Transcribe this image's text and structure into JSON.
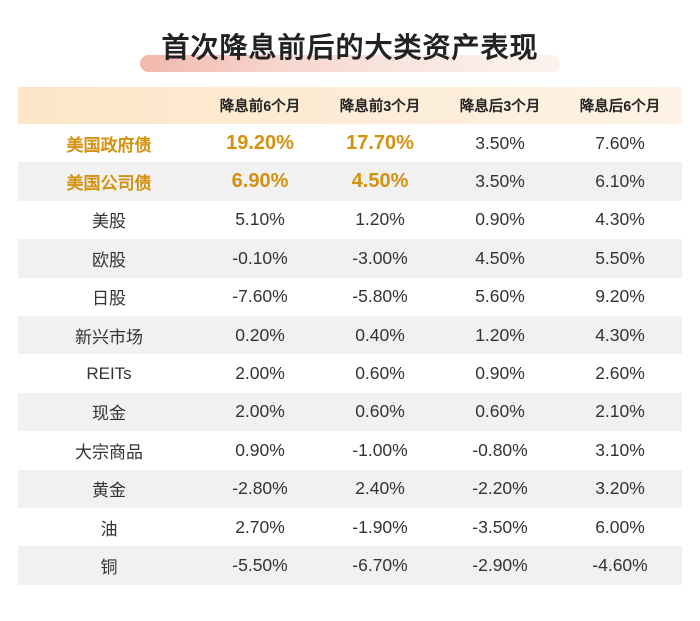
{
  "chart_data": {
    "type": "table",
    "title": "首次降息前后的大类资产表现",
    "columns": [
      "",
      "降息前6个月",
      "降息前3个月",
      "降息后3个月",
      "降息后6个月"
    ],
    "rows": [
      {
        "label": "美国政府债",
        "values": [
          "19.20%",
          "17.70%",
          "3.50%",
          "7.60%"
        ]
      },
      {
        "label": "美国公司债",
        "values": [
          "6.90%",
          "4.50%",
          "3.50%",
          "6.10%"
        ]
      },
      {
        "label": "美股",
        "values": [
          "5.10%",
          "1.20%",
          "0.90%",
          "4.30%"
        ]
      },
      {
        "label": "欧股",
        "values": [
          "-0.10%",
          "-3.00%",
          "4.50%",
          "5.50%"
        ]
      },
      {
        "label": "日股",
        "values": [
          "-7.60%",
          "-5.80%",
          "5.60%",
          "9.20%"
        ]
      },
      {
        "label": "新兴市场",
        "values": [
          "0.20%",
          "0.40%",
          "1.20%",
          "4.30%"
        ]
      },
      {
        "label": "REITs",
        "values": [
          "2.00%",
          "0.60%",
          "0.90%",
          "2.60%"
        ]
      },
      {
        "label": "现金",
        "values": [
          "2.00%",
          "0.60%",
          "0.60%",
          "2.10%"
        ]
      },
      {
        "label": "大宗商品",
        "values": [
          "0.90%",
          "-1.00%",
          "-0.80%",
          "3.10%"
        ]
      },
      {
        "label": "黄金",
        "values": [
          "-2.80%",
          "2.40%",
          "-2.20%",
          "3.20%"
        ]
      },
      {
        "label": "油",
        "values": [
          "2.70%",
          "-1.90%",
          "-3.50%",
          "6.00%"
        ]
      },
      {
        "label": "铜",
        "values": [
          "-5.50%",
          "-6.70%",
          "-2.90%",
          "-4.60%"
        ]
      }
    ]
  },
  "colors": {
    "highlight": "#d4910f",
    "header_background": "#fde6c7",
    "alternate_row": "#f1f1f1",
    "title_underline": "#f2b8ad"
  }
}
